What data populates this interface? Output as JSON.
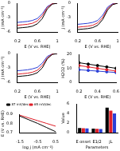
{
  "chart_data": [
    {
      "type": "line",
      "xlabel": "E (V vs. RHE)",
      "ylabel": "j (mA cm⁻²)",
      "grid": false,
      "x": [
        0.2,
        0.3,
        0.4,
        0.5,
        0.6,
        0.7,
        0.8,
        0.9,
        1.0
      ],
      "xlim": [
        0.2,
        1.0
      ],
      "xticks": [
        0.2,
        0.6,
        1.0
      ],
      "ylim": [
        -6,
        0
      ],
      "yticks": [
        -6,
        -3,
        0
      ],
      "series": [
        {
          "color": "#000000",
          "values": [
            -5.2,
            -5.1,
            -5.0,
            -4.8,
            -4.3,
            -3.2,
            -1.2,
            -0.2,
            0
          ]
        },
        {
          "color": "#e0202a",
          "values": [
            -4.6,
            -4.5,
            -4.4,
            -4.2,
            -3.7,
            -2.6,
            -0.9,
            -0.1,
            0
          ]
        },
        {
          "color": "#2a3fd6",
          "values": [
            -4.0,
            -3.9,
            -3.8,
            -3.6,
            -3.2,
            -2.2,
            -0.7,
            -0.1,
            0
          ]
        }
      ]
    },
    {
      "type": "line",
      "xlabel": "E (V vs. RHE)",
      "ylabel": "j (mA cm⁻²)",
      "grid": false,
      "x": [
        0.2,
        0.3,
        0.4,
        0.5,
        0.6,
        0.7,
        0.8,
        0.9,
        1.0
      ],
      "xlim": [
        0.2,
        1.0
      ],
      "xticks": [
        0.2,
        0.6,
        1.0
      ],
      "ylim": [
        -6,
        0
      ],
      "yticks": [
        -6,
        -3,
        0
      ],
      "series": [
        {
          "color": "#000000",
          "values": [
            -5.5,
            -5.4,
            -5.3,
            -5.1,
            -4.6,
            -3.4,
            -1.4,
            -0.3,
            0
          ]
        },
        {
          "color": "#e0202a",
          "values": [
            -5.0,
            -4.9,
            -4.8,
            -4.6,
            -4.1,
            -3.0,
            -1.1,
            -0.2,
            0
          ]
        },
        {
          "color": "#2a3fd6",
          "values": [
            -4.4,
            -4.3,
            -4.2,
            -4.0,
            -3.6,
            -2.5,
            -0.8,
            -0.1,
            0
          ]
        }
      ]
    },
    {
      "type": "line",
      "xlabel": "E (V vs. RHE)",
      "ylabel": "j (mA cm⁻²)",
      "grid": false,
      "x": [
        0.2,
        0.3,
        0.4,
        0.5,
        0.6,
        0.7,
        0.8,
        0.9,
        1.0
      ],
      "xlim": [
        0.2,
        1.0
      ],
      "xticks": [
        0.2,
        0.6,
        1.0
      ],
      "ylim": [
        -6,
        0
      ],
      "yticks": [
        -6,
        -3,
        0
      ],
      "series": [
        {
          "color": "#000000",
          "values": [
            -4.8,
            -4.7,
            -4.6,
            -4.4,
            -4.0,
            -3.0,
            -1.1,
            -0.2,
            0
          ]
        },
        {
          "color": "#e0202a",
          "values": [
            -4.3,
            -4.2,
            -4.1,
            -3.9,
            -3.5,
            -2.5,
            -0.9,
            -0.1,
            0
          ]
        },
        {
          "color": "#2a3fd6",
          "values": [
            -3.6,
            -3.5,
            -3.4,
            -3.2,
            -2.9,
            -2.0,
            -0.6,
            -0.1,
            0
          ]
        }
      ]
    },
    {
      "type": "line",
      "xlabel": "E (V vs. RHE)",
      "ylabel": "H2O2 (%)",
      "grid": false,
      "marker": "circle",
      "x": [
        0.2,
        0.3,
        0.4,
        0.5,
        0.6
      ],
      "xlim": [
        0.2,
        0.6
      ],
      "xticks": [
        0.2,
        0.4,
        0.6
      ],
      "ylim": [
        0,
        20
      ],
      "yticks": [
        0,
        10,
        20
      ],
      "series": [
        {
          "color": "#000000",
          "values": [
            14,
            13,
            12,
            11,
            10
          ]
        },
        {
          "color": "#e0202a",
          "values": [
            12,
            11,
            10,
            9,
            8
          ]
        },
        {
          "color": "#2a3fd6",
          "values": [
            9,
            8.5,
            8,
            7.5,
            7
          ]
        }
      ]
    },
    {
      "type": "line",
      "xlabel": "log j (mA cm⁻²)",
      "ylabel": "E (V vs. RHE)",
      "grid": false,
      "legend": "top",
      "x": [
        -1.5,
        -1,
        -0.5,
        0,
        0.5
      ],
      "xlim": [
        -1.5,
        0.5
      ],
      "xticks": [
        -1.5,
        -0.5,
        0.5
      ],
      "ylim": [
        0.7,
        0.9
      ],
      "yticks": [
        0.7,
        0.8,
        0.9
      ],
      "series": [
        {
          "name": "87 mV/dec",
          "color": "#000000",
          "values": [
            0.88,
            0.84,
            0.8,
            0.755,
            0.71
          ]
        },
        {
          "name": "65 mV/dec",
          "color": "#e0202a",
          "values": [
            0.89,
            0.86,
            0.83,
            0.8,
            0.77
          ]
        }
      ]
    },
    {
      "type": "bar",
      "xlabel": "Parameters",
      "ylabel": "Value",
      "grid": false,
      "categories": [
        "E onset",
        "E1/2",
        "jL"
      ],
      "ylim": [
        0,
        6
      ],
      "yticks": [
        0,
        2,
        4,
        6
      ],
      "series": [
        {
          "color": "#000000",
          "values": [
            0.95,
            0.82,
            5.2
          ]
        },
        {
          "color": "#e0202a",
          "values": [
            0.9,
            0.78,
            4.6
          ]
        },
        {
          "color": "#2a3fd6",
          "values": [
            0.88,
            0.75,
            4.0
          ]
        }
      ]
    }
  ]
}
